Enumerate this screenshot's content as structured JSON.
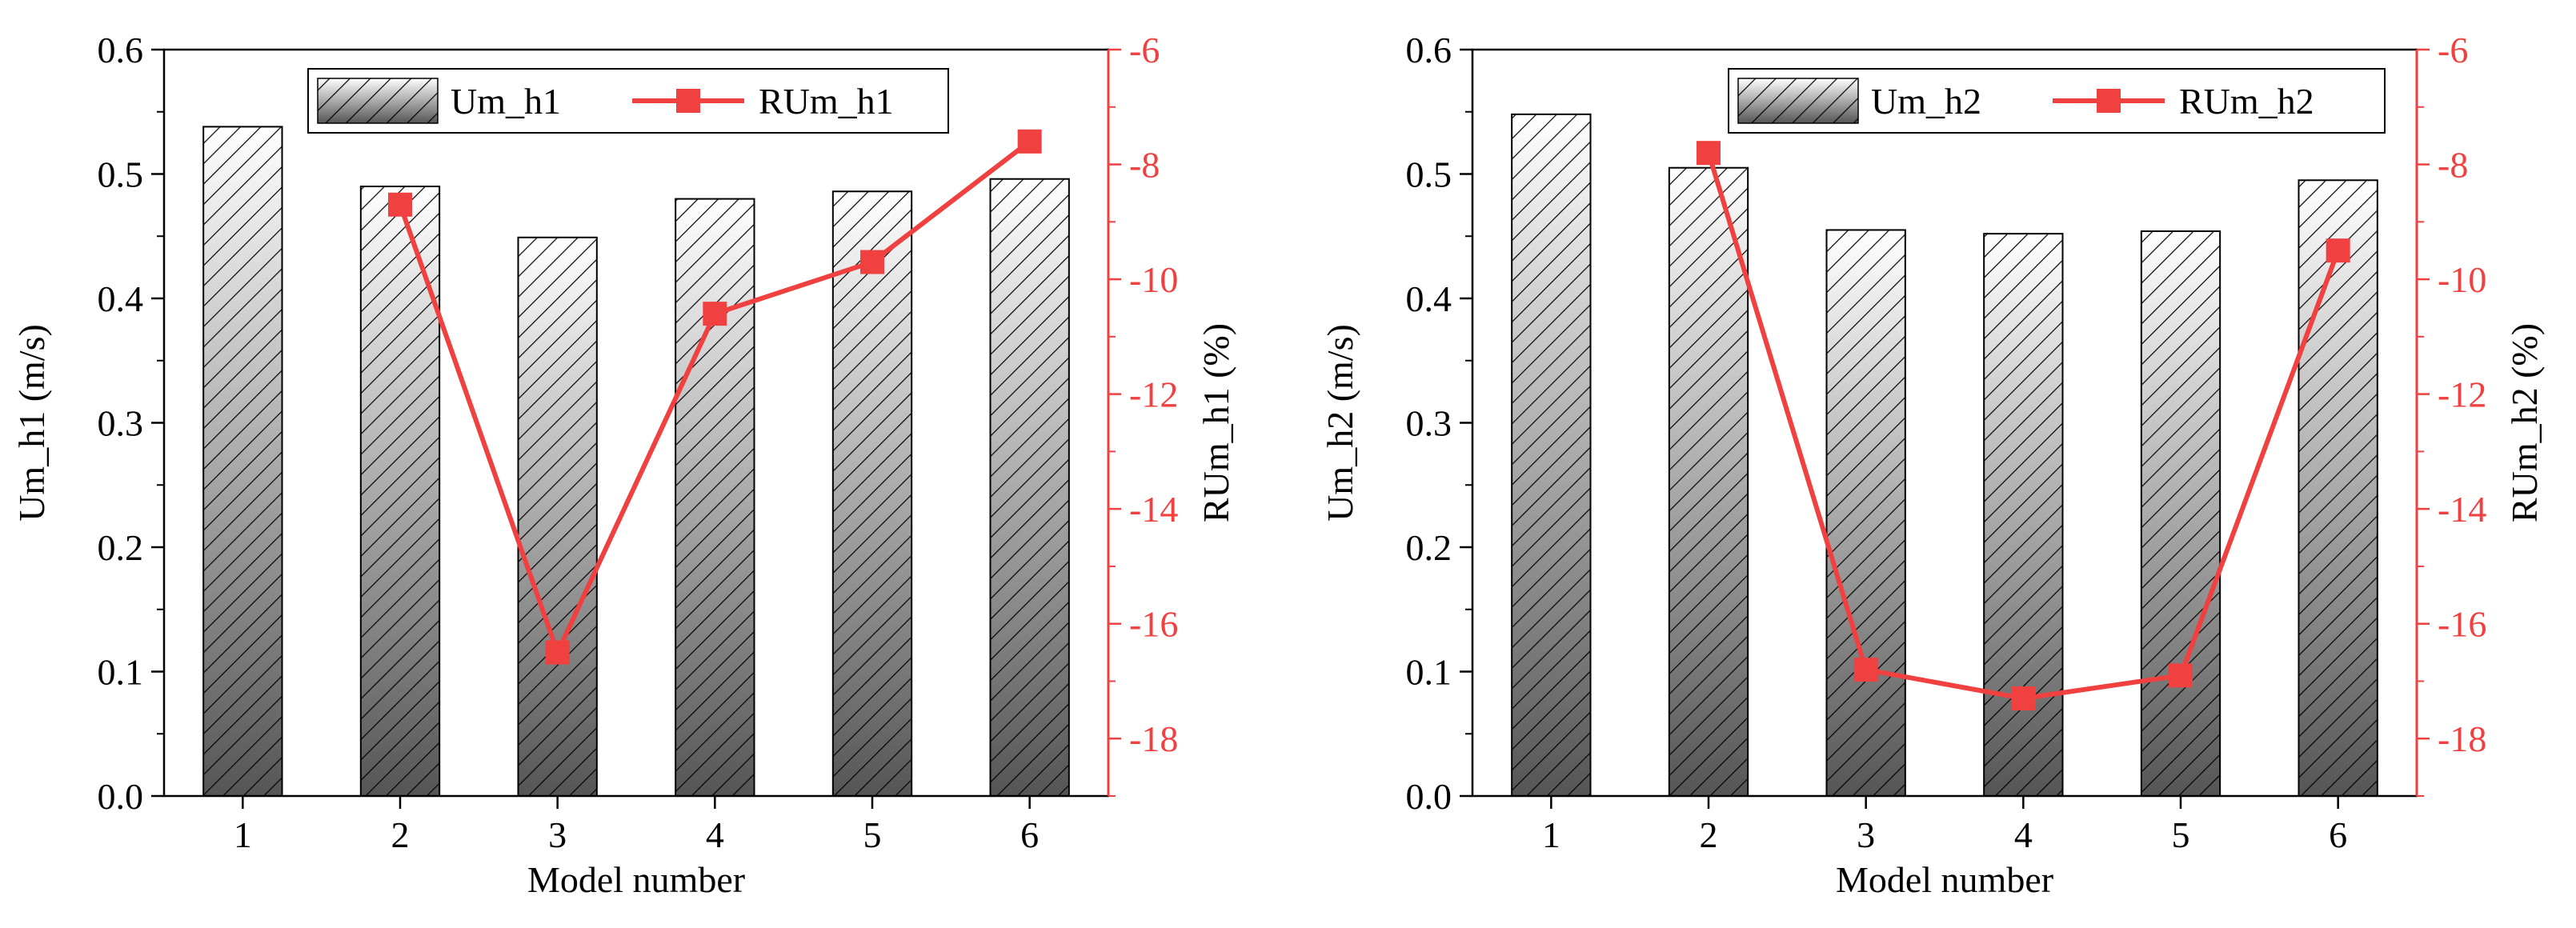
{
  "colors": {
    "bar_top": "#ffffff",
    "bar_bottom": "#555555",
    "line": "#f04040",
    "axis": "#000000",
    "right_axis": "#f04040"
  },
  "chart_data": [
    {
      "type": "bar+line",
      "xlabel": "Model number",
      "ylabel_left": "Um_h1 (m/s)",
      "ylabel_right": "RUm_h1 (%)",
      "categories": [
        "1",
        "2",
        "3",
        "4",
        "5",
        "6"
      ],
      "ylim_left": [
        0.0,
        0.6
      ],
      "yticks_left": [
        "0.0",
        "0.1",
        "0.2",
        "0.3",
        "0.4",
        "0.5",
        "0.6"
      ],
      "ylim_right": [
        -19,
        -6
      ],
      "yticks_right": [
        "-6",
        "-8",
        "-10",
        "-12",
        "-14",
        "-16",
        "-18"
      ],
      "series": [
        {
          "name": "Um_h1",
          "kind": "bar",
          "axis": "left",
          "values": [
            0.538,
            0.49,
            0.449,
            0.48,
            0.486,
            0.496
          ]
        },
        {
          "name": "RUm_h1",
          "kind": "line",
          "axis": "right",
          "values": [
            null,
            -8.7,
            -16.5,
            -10.6,
            -9.7,
            -7.6
          ]
        }
      ],
      "legend_position": "top"
    },
    {
      "type": "bar+line",
      "xlabel": "Model number",
      "ylabel_left": "Um_h2 (m/s)",
      "ylabel_right": "RUm_h2 (%)",
      "categories": [
        "1",
        "2",
        "3",
        "4",
        "5",
        "6"
      ],
      "ylim_left": [
        0.0,
        0.6
      ],
      "yticks_left": [
        "0.0",
        "0.1",
        "0.2",
        "0.3",
        "0.4",
        "0.5",
        "0.6"
      ],
      "ylim_right": [
        -19,
        -6
      ],
      "yticks_right": [
        "-6",
        "-8",
        "-10",
        "-12",
        "-14",
        "-16",
        "-18"
      ],
      "series": [
        {
          "name": "Um_h2",
          "kind": "bar",
          "axis": "left",
          "values": [
            0.548,
            0.505,
            0.455,
            0.452,
            0.454,
            0.495
          ]
        },
        {
          "name": "RUm_h2",
          "kind": "line",
          "axis": "right",
          "values": [
            null,
            -7.8,
            -16.8,
            -17.3,
            -16.9,
            -9.5
          ]
        }
      ],
      "legend_position": "top"
    }
  ]
}
